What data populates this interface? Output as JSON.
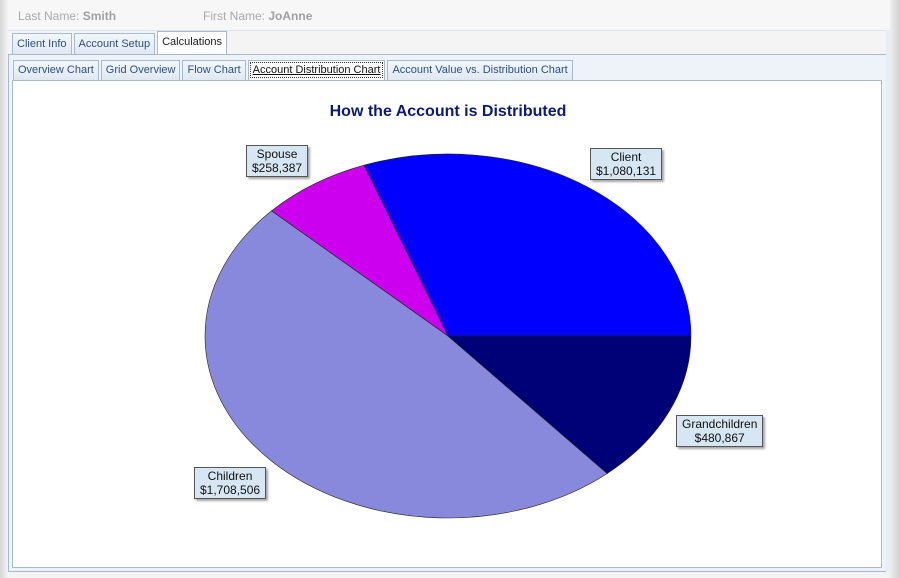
{
  "header": {
    "last_name_label": "Last Name:",
    "last_name_value": "Smith",
    "first_name_label": "First Name:",
    "first_name_value": "JoAnne"
  },
  "main_tabs": [
    {
      "label": "Client Info"
    },
    {
      "label": "Account Setup"
    },
    {
      "label": "Calculations"
    }
  ],
  "sub_tabs": [
    {
      "label": "Overview Chart"
    },
    {
      "label": "Grid Overview"
    },
    {
      "label": "Flow Chart"
    },
    {
      "label": "Account Distribution Chart"
    },
    {
      "label": "Account Value vs. Distribution Chart"
    }
  ],
  "chart_data": {
    "type": "pie",
    "title": "How the Account is Distributed",
    "slices": [
      {
        "name": "Client",
        "value": 1080131,
        "label": "$1,080,131",
        "color": "#0000ff"
      },
      {
        "name": "Grandchildren",
        "value": 480867,
        "label": "$480,867",
        "color": "#000077"
      },
      {
        "name": "Children",
        "value": 1708506,
        "label": "$1,708,506",
        "color": "#8888dd"
      },
      {
        "name": "Spouse",
        "value": 258387,
        "label": "$258,387",
        "color": "#cc00ee"
      }
    ]
  }
}
